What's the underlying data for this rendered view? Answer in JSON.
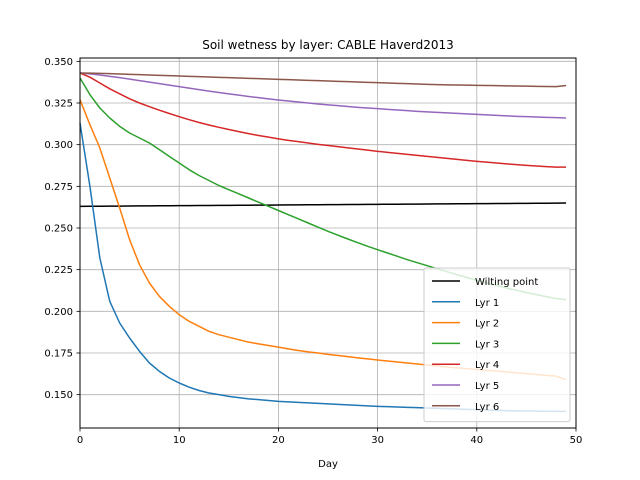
{
  "chart_data": {
    "type": "line",
    "title": "Soil wetness by layer: CABLE Haverd2013",
    "xlabel": "Day",
    "ylabel": "",
    "xlim": [
      0,
      50
    ],
    "ylim": [
      0.13,
      0.352
    ],
    "xticks": [
      "0",
      "10",
      "20",
      "30",
      "40",
      "50"
    ],
    "yticks": [
      "0.150",
      "0.175",
      "0.200",
      "0.225",
      "0.250",
      "0.275",
      "0.300",
      "0.325",
      "0.350"
    ],
    "grid": true,
    "legend_position": "lower-right",
    "x": [
      0,
      1,
      2,
      3,
      4,
      5,
      6,
      7,
      8,
      9,
      10,
      11,
      12,
      13,
      14,
      15,
      16,
      17,
      18,
      19,
      20,
      21,
      22,
      23,
      24,
      25,
      26,
      27,
      28,
      29,
      30,
      31,
      32,
      33,
      34,
      35,
      36,
      37,
      38,
      39,
      40,
      41,
      42,
      43,
      44,
      45,
      46,
      47,
      48,
      49
    ],
    "series": [
      {
        "name": "Wilting point",
        "color": "#000000",
        "values": [
          0.263,
          0.26304,
          0.26308,
          0.26312,
          0.26316,
          0.2632,
          0.26324,
          0.26328,
          0.26332,
          0.26336,
          0.2634,
          0.26344,
          0.26348,
          0.26352,
          0.26356,
          0.2636,
          0.26364,
          0.26368,
          0.26372,
          0.26376,
          0.2638,
          0.26384,
          0.26388,
          0.26392,
          0.26396,
          0.264,
          0.26404,
          0.26408,
          0.26412,
          0.26416,
          0.2642,
          0.26424,
          0.26428,
          0.26432,
          0.26436,
          0.2644,
          0.26444,
          0.26448,
          0.26452,
          0.26456,
          0.2646,
          0.26464,
          0.26468,
          0.26472,
          0.26476,
          0.2648,
          0.26484,
          0.26488,
          0.26492,
          0.265
        ]
      },
      {
        "name": "Lyr 1",
        "color": "#1f77b4",
        "values": [
          0.313,
          0.275,
          0.232,
          0.206,
          0.193,
          0.184,
          0.176,
          0.169,
          0.164,
          0.16,
          0.157,
          0.1545,
          0.1525,
          0.151,
          0.15,
          0.149,
          0.1482,
          0.1475,
          0.147,
          0.1465,
          0.146,
          0.1457,
          0.1454,
          0.1451,
          0.1448,
          0.1445,
          0.1442,
          0.1439,
          0.1436,
          0.1433,
          0.143,
          0.1428,
          0.1426,
          0.1424,
          0.1422,
          0.142,
          0.1418,
          0.1416,
          0.1414,
          0.1412,
          0.141,
          0.1408,
          0.1406,
          0.1404,
          0.1403,
          0.1402,
          0.1401,
          0.14,
          0.14,
          0.14
        ]
      },
      {
        "name": "Lyr 2",
        "color": "#ff7f0e",
        "values": [
          0.327,
          0.312,
          0.298,
          0.28,
          0.262,
          0.243,
          0.228,
          0.217,
          0.209,
          0.203,
          0.198,
          0.194,
          0.191,
          0.188,
          0.186,
          0.1845,
          0.183,
          0.1815,
          0.1805,
          0.1795,
          0.1785,
          0.1775,
          0.1765,
          0.1757,
          0.175,
          0.1742,
          0.1735,
          0.1728,
          0.1721,
          0.1715,
          0.1708,
          0.1702,
          0.1696,
          0.169,
          0.1684,
          0.1678,
          0.1672,
          0.1666,
          0.1661,
          0.1656,
          0.1651,
          0.1646,
          0.1641,
          0.1636,
          0.1631,
          0.1626,
          0.1621,
          0.1616,
          0.1611,
          0.159
        ]
      },
      {
        "name": "Lyr 3",
        "color": "#2ca02c",
        "values": [
          0.34,
          0.33,
          0.322,
          0.316,
          0.311,
          0.307,
          0.304,
          0.301,
          0.297,
          0.293,
          0.289,
          0.285,
          0.2815,
          0.2785,
          0.2755,
          0.273,
          0.2705,
          0.268,
          0.2655,
          0.263,
          0.2605,
          0.258,
          0.2555,
          0.253,
          0.2505,
          0.248,
          0.2457,
          0.2434,
          0.2412,
          0.239,
          0.237,
          0.235,
          0.233,
          0.231,
          0.2292,
          0.2274,
          0.2256,
          0.2238,
          0.222,
          0.2203,
          0.2186,
          0.217,
          0.2155,
          0.214,
          0.2126,
          0.2113,
          0.21,
          0.2088,
          0.2077,
          0.207
        ]
      },
      {
        "name": "Lyr 4",
        "color": "#d62728",
        "values": [
          0.343,
          0.3405,
          0.337,
          0.3335,
          0.3305,
          0.3275,
          0.325,
          0.3228,
          0.3207,
          0.3187,
          0.3168,
          0.315,
          0.3133,
          0.3118,
          0.3104,
          0.3091,
          0.3078,
          0.3066,
          0.3055,
          0.3045,
          0.3035,
          0.3026,
          0.3018,
          0.301,
          0.3002,
          0.2995,
          0.2988,
          0.2981,
          0.2974,
          0.2967,
          0.296,
          0.2954,
          0.2948,
          0.2942,
          0.2936,
          0.293,
          0.2924,
          0.2918,
          0.2912,
          0.2906,
          0.29,
          0.2895,
          0.289,
          0.2885,
          0.288,
          0.2876,
          0.2872,
          0.2868,
          0.2865,
          0.2865
        ]
      },
      {
        "name": "Lyr 5",
        "color": "#9467bd",
        "values": [
          0.343,
          0.3425,
          0.3418,
          0.341,
          0.3402,
          0.3393,
          0.3384,
          0.3375,
          0.3366,
          0.3357,
          0.3348,
          0.3339,
          0.333,
          0.3321,
          0.3313,
          0.3305,
          0.3297,
          0.3289,
          0.3282,
          0.3275,
          0.3268,
          0.3262,
          0.3256,
          0.325,
          0.3244,
          0.3239,
          0.3234,
          0.3229,
          0.3224,
          0.322,
          0.3216,
          0.3212,
          0.3208,
          0.3204,
          0.32,
          0.3197,
          0.3194,
          0.3191,
          0.3188,
          0.3185,
          0.3182,
          0.3179,
          0.3176,
          0.3173,
          0.317,
          0.3168,
          0.3166,
          0.3164,
          0.3162,
          0.316
        ]
      },
      {
        "name": "Lyr 6",
        "color": "#8c564b",
        "values": [
          0.343,
          0.3429,
          0.3428,
          0.3426,
          0.3424,
          0.3422,
          0.342,
          0.3418,
          0.3416,
          0.3414,
          0.3412,
          0.341,
          0.3408,
          0.3406,
          0.3404,
          0.3402,
          0.34,
          0.3398,
          0.3396,
          0.3394,
          0.3392,
          0.339,
          0.3388,
          0.3386,
          0.3384,
          0.3382,
          0.338,
          0.3378,
          0.3376,
          0.3374,
          0.3372,
          0.337,
          0.3368,
          0.3366,
          0.3364,
          0.3362,
          0.336,
          0.3359,
          0.3358,
          0.3357,
          0.3356,
          0.3355,
          0.3354,
          0.3353,
          0.3352,
          0.3351,
          0.335,
          0.3349,
          0.3348,
          0.3355
        ]
      }
    ]
  }
}
